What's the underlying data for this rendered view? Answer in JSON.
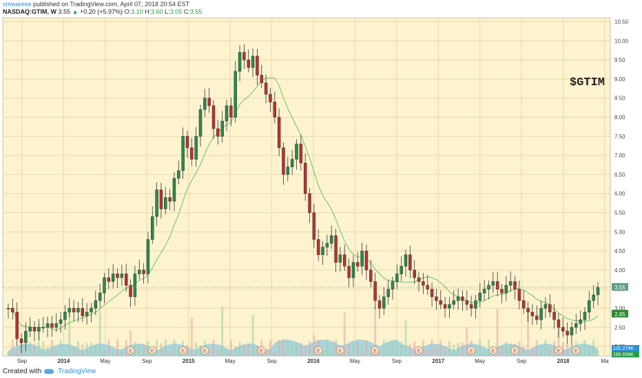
{
  "header": {
    "author": "vmwareee",
    "published_text": "published on TradingView.com, April 07, 2018 20:54 EST",
    "symbol": "NASDAQ:GTIM, W",
    "last": "3.55",
    "change_arrow": "▲",
    "change": "+0.20 (+5.97%)",
    "o_label": "O:",
    "o_value": "3.10",
    "h_label": "H:",
    "h_value": "3.60",
    "l_label": "L:",
    "l_value": "3.05",
    "c_label": "C:",
    "c_value": "3.55"
  },
  "footer": {
    "created_with": "Created with",
    "brand": "TradingView"
  },
  "chart_data": {
    "type": "candlestick",
    "annotation": "$GTIM",
    "ylim": [
      1.75,
      10.6
    ],
    "y_ticks": [
      2.0,
      2.5,
      3.0,
      3.5,
      4.0,
      4.5,
      5.0,
      5.5,
      6.0,
      6.5,
      7.0,
      7.5,
      8.0,
      8.5,
      9.0,
      9.5,
      10.0,
      10.5
    ],
    "x_ticks": [
      "Sep",
      "2014",
      "May",
      "Sep",
      "2015",
      "May",
      "Sep",
      "2016",
      "May",
      "Sep",
      "2017",
      "May",
      "Sep",
      "2018",
      "Ma"
    ],
    "earnings_marker": "E",
    "price_labels": {
      "last": "3.55",
      "moving_average": "2.85"
    },
    "volume_labels": [
      "131.274K",
      "185.656K"
    ],
    "colors": {
      "up": "#2a8a4c",
      "down": "#b8322f",
      "ma": "#6cbf6a",
      "ma2": "#d9605d",
      "volume_area": "#8fcbe0",
      "bg": "#fdf3cf"
    },
    "weekly_closes": [
      3.0,
      2.9,
      2.2,
      2.1,
      2.4,
      2.5,
      2.4,
      2.5,
      2.5,
      2.6,
      2.5,
      2.6,
      2.7,
      2.9,
      3.0,
      2.9,
      3.0,
      2.8,
      2.9,
      3.0,
      3.2,
      3.4,
      3.8,
      3.7,
      3.9,
      3.8,
      3.9,
      3.6,
      3.3,
      3.9,
      4.0,
      3.9,
      4.8,
      5.4,
      6.1,
      5.6,
      5.9,
      5.8,
      6.4,
      6.6,
      7.5,
      7.2,
      6.9,
      7.5,
      8.2,
      8.5,
      8.3,
      7.7,
      7.5,
      7.9,
      8.3,
      8.0,
      9.2,
      9.7,
      9.5,
      9.3,
      9.6,
      9.1,
      8.9,
      8.6,
      8.4,
      8.0,
      7.2,
      6.5,
      6.7,
      6.9,
      7.3,
      6.8,
      6.0,
      5.5,
      4.8,
      4.4,
      4.6,
      4.7,
      4.9,
      4.2,
      4.4,
      4.1,
      3.8,
      4.2,
      4.1,
      4.5,
      4.0,
      3.7,
      3.2,
      3.0,
      3.3,
      3.5,
      3.7,
      3.9,
      4.1,
      4.4,
      4.0,
      3.8,
      3.7,
      3.6,
      3.5,
      3.3,
      3.2,
      3.1,
      3.0,
      3.1,
      3.2,
      3.3,
      3.2,
      3.1,
      3.0,
      3.2,
      3.4,
      3.5,
      3.6,
      3.7,
      3.5,
      3.4,
      3.6,
      3.7,
      3.5,
      3.2,
      3.0,
      2.9,
      2.8,
      2.7,
      3.0,
      3.1,
      2.9,
      2.7,
      2.5,
      2.4,
      2.3,
      2.5,
      2.6,
      2.7,
      2.9,
      3.2,
      3.35,
      3.55
    ]
  }
}
